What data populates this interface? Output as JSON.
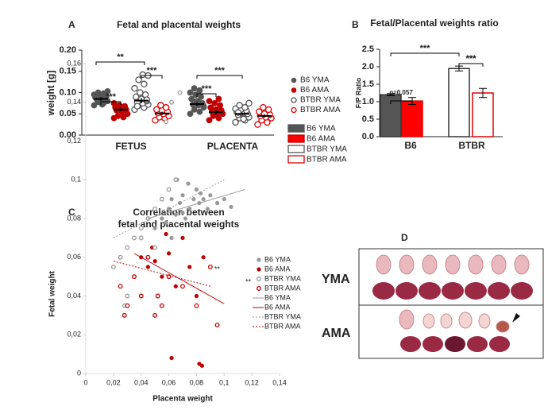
{
  "chart_data": [
    {
      "type": "dotplot",
      "label": "A",
      "title": "Fetal and placental weights",
      "ylabel": "weight [g]",
      "categories": [
        "FETUS",
        "PLACENTA"
      ],
      "ylim": [
        0,
        0.2
      ],
      "yticks": [
        {
          "value": 0,
          "label": "0.00"
        },
        {
          "value": 0.05,
          "label": "0.05"
        },
        {
          "value": 0.1,
          "label": "0.10"
        },
        {
          "value": 0.15,
          "label": "0.15"
        },
        {
          "value": 0.2,
          "label": "0.20"
        }
      ],
      "series": [
        {
          "name": "B6 YMA",
          "color": "#555555",
          "open": false,
          "means": [
            0.085,
            0.073
          ],
          "errors": [
            0.004,
            0.004
          ],
          "points": [
            [
              0.07,
              0.075,
              0.078,
              0.08,
              0.082,
              0.084,
              0.085,
              0.087,
              0.088,
              0.09,
              0.092,
              0.095,
              0.098,
              0.1,
              0.103,
              0.072,
              0.086,
              0.091
            ],
            [
              0.05,
              0.055,
              0.06,
              0.065,
              0.07,
              0.072,
              0.075,
              0.08,
              0.085,
              0.09,
              0.095,
              0.1,
              0.105,
              0.11,
              0.068,
              0.078
            ]
          ]
        },
        {
          "name": "B6 AMA",
          "color": "#c00000",
          "open": false,
          "means": [
            0.06,
            0.054
          ],
          "errors": [
            0.004,
            0.005
          ],
          "points": [
            [
              0.04,
              0.042,
              0.045,
              0.05,
              0.055,
              0.058,
              0.06,
              0.062,
              0.065,
              0.068,
              0.07,
              0.075
            ],
            [
              0.035,
              0.04,
              0.045,
              0.05,
              0.052,
              0.055,
              0.058,
              0.06,
              0.065,
              0.07,
              0.075,
              0.08,
              0.085
            ]
          ]
        },
        {
          "name": "BTBR YMA",
          "color": "#555555",
          "open": true,
          "means": [
            0.081,
            0.05
          ],
          "errors": [
            0.006,
            0.003
          ],
          "points": [
            [
              0.06,
              0.065,
              0.07,
              0.072,
              0.075,
              0.078,
              0.08,
              0.085,
              0.09,
              0.095,
              0.1,
              0.11,
              0.12,
              0.13,
              0.14,
              0.142,
              0.068,
              0.083
            ],
            [
              0.03,
              0.035,
              0.04,
              0.042,
              0.045,
              0.048,
              0.05,
              0.052,
              0.055,
              0.058,
              0.06,
              0.062,
              0.065,
              0.07,
              0.075,
              0.038,
              0.053
            ]
          ]
        },
        {
          "name": "BTBR AMA",
          "color": "#e00000",
          "open": true,
          "means": [
            0.051,
            0.045
          ],
          "errors": [
            0.004,
            0.004
          ],
          "points": [
            [
              0.035,
              0.04,
              0.042,
              0.045,
              0.05,
              0.052,
              0.055,
              0.058,
              0.06,
              0.065,
              0.07
            ],
            [
              0.025,
              0.03,
              0.035,
              0.04,
              0.042,
              0.045,
              0.048,
              0.05,
              0.055,
              0.06,
              0.065
            ]
          ]
        }
      ],
      "annotations": [
        "**",
        "***",
        "***",
        "***",
        "***"
      ]
    },
    {
      "type": "bar",
      "label": "B",
      "title": "Fetal/Placental weights ratio",
      "ylabel": "F/P Ratio",
      "categories": [
        "B6",
        "BTBR"
      ],
      "ylim": [
        0,
        2.5
      ],
      "yticks": [
        {
          "value": 0,
          "label": "0.0"
        },
        {
          "value": 0.5,
          "label": "0.5"
        },
        {
          "value": 1,
          "label": "1.0"
        },
        {
          "value": 1.5,
          "label": "1.5"
        },
        {
          "value": 2,
          "label": "2.0"
        },
        {
          "value": 2.5,
          "label": "2.5"
        }
      ],
      "series": [
        {
          "colors": [
            "#555555",
            "#ffffff"
          ],
          "edge": "#333333",
          "values": [
            1.2,
            1.95
          ],
          "errors": [
            0.03,
            0.07
          ]
        },
        {
          "colors": [
            "#ff0000",
            "#ffffff"
          ],
          "edge": "#e00000",
          "values": [
            1.02,
            1.25
          ],
          "errors": [
            0.1,
            0.13
          ]
        }
      ],
      "annotations": [
        "***",
        "p=0.057",
        "***",
        "***"
      ]
    },
    {
      "type": "scatter",
      "label": "C",
      "title": [
        "Correlation between",
        "fetal and placental weights"
      ],
      "xlabel": "Placenta weight",
      "ylabel": "Fetal weight",
      "xlim": [
        0,
        0.14
      ],
      "ylim": [
        0,
        0.16
      ],
      "xticks": [
        0,
        {
          "value": 0.02,
          "label": "0,02"
        },
        {
          "value": 0.04,
          "label": "0,04"
        },
        {
          "value": 0.06,
          "label": "0,06"
        },
        {
          "value": 0.08,
          "label": "0,08"
        },
        {
          "value": 0.1,
          "label": "0,1"
        },
        {
          "value": 0.12,
          "label": "0,12"
        },
        {
          "value": 0.14,
          "label": "0,14"
        }
      ],
      "yticks": [
        0,
        {
          "value": 0.02,
          "label": "0,02"
        },
        {
          "value": 0.04,
          "label": "0,04"
        },
        {
          "value": 0.06,
          "label": "0,06"
        },
        {
          "value": 0.08,
          "label": "0,08"
        },
        {
          "value": 0.1,
          "label": "0,1"
        },
        {
          "value": 0.12,
          "label": "0,12"
        },
        {
          "value": 0.14,
          "label": "0,14"
        },
        {
          "value": 0.16,
          "label": "0,16"
        }
      ],
      "series": [
        {
          "name": "B6 YMA",
          "color": "#999999",
          "open": false,
          "x": [
            0.05,
            0.055,
            0.06,
            0.062,
            0.065,
            0.068,
            0.07,
            0.072,
            0.075,
            0.078,
            0.08,
            0.082,
            0.085,
            0.088,
            0.09,
            0.095,
            0.1,
            0.105,
            0.058,
            0.066,
            0.074,
            0.083,
            0.07,
            0.062
          ],
          "values": [
            0.075,
            0.08,
            0.085,
            0.09,
            0.082,
            0.088,
            0.092,
            0.08,
            0.085,
            0.09,
            0.095,
            0.088,
            0.09,
            0.085,
            0.092,
            0.088,
            0.09,
            0.086,
            0.078,
            0.1,
            0.098,
            0.093,
            0.083,
            0.07
          ]
        },
        {
          "name": "B6 AMA",
          "color": "#c00000",
          "open": false,
          "x": [
            0.04,
            0.045,
            0.05,
            0.055,
            0.06,
            0.065,
            0.07,
            0.075,
            0.08,
            0.085,
            0.062,
            0.082,
            0.084,
            0.048,
            0.058
          ],
          "values": [
            0.06,
            0.055,
            0.058,
            0.05,
            0.062,
            0.045,
            0.07,
            0.055,
            0.04,
            0.06,
            0.008,
            0.005,
            0.004,
            0.065,
            0.072
          ]
        },
        {
          "name": "BTBR YMA",
          "color": "#999999",
          "open": true,
          "x": [
            0.02,
            0.025,
            0.03,
            0.035,
            0.04,
            0.045,
            0.05,
            0.055,
            0.06,
            0.065,
            0.058,
            0.062,
            0.068,
            0.03,
            0.04,
            0.05,
            0.028
          ],
          "values": [
            0.055,
            0.06,
            0.065,
            0.07,
            0.075,
            0.08,
            0.085,
            0.09,
            0.095,
            0.1,
            0.13,
            0.14,
            0.145,
            0.04,
            0.07,
            0.065,
            0.035
          ]
        },
        {
          "name": "BTBR AMA",
          "color": "#c00000",
          "open": true,
          "x": [
            0.025,
            0.03,
            0.035,
            0.04,
            0.045,
            0.05,
            0.055,
            0.06,
            0.07,
            0.08,
            0.09,
            0.028,
            0.052,
            0.095
          ],
          "values": [
            0.045,
            0.035,
            0.05,
            0.04,
            0.06,
            0.03,
            0.035,
            0.05,
            0.045,
            0.035,
            0.055,
            0.03,
            0.04,
            0.025
          ]
        }
      ],
      "trendlines": [
        {
          "name": "B6 YMA",
          "color": "#999999",
          "dashed": false,
          "x": [
            0.045,
            0.115
          ],
          "values": [
            0.08,
            0.095
          ]
        },
        {
          "name": "B6 AMA",
          "color": "#c00000",
          "dashed": false,
          "x": [
            0.035,
            0.1
          ],
          "values": [
            0.062,
            0.036
          ]
        },
        {
          "name": "BTBR YMA",
          "color": "#999999",
          "dashed": true,
          "x": [
            0.02,
            0.1
          ],
          "values": [
            0.07,
            0.1
          ]
        },
        {
          "name": "BTBR AMA",
          "color": "#c00000",
          "dashed": true,
          "x": [
            0.02,
            0.09
          ],
          "values": [
            0.058,
            0.045
          ]
        }
      ],
      "annotations": [
        "**",
        "**"
      ]
    }
  ],
  "image_panel": {
    "label": "D",
    "rows": [
      "YMA",
      "AMA"
    ]
  }
}
